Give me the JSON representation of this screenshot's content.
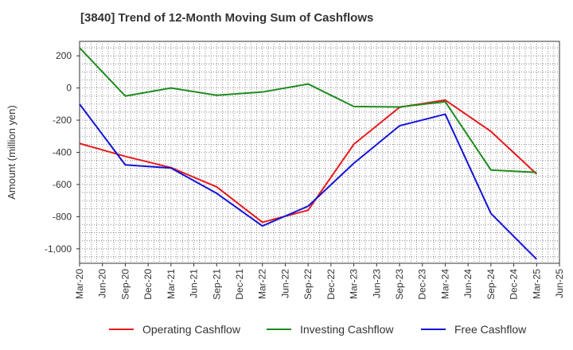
{
  "chart_data": {
    "type": "line",
    "title": "[3840]  Trend of 12-Month Moving Sum of Cashflows",
    "xlabel": "",
    "ylabel": "Amount (million yen)",
    "categories": [
      "Mar-20",
      "Jun-20",
      "Sep-20",
      "Dec-20",
      "Mar-21",
      "Jun-21",
      "Sep-21",
      "Dec-21",
      "Mar-22",
      "Jun-22",
      "Sep-22",
      "Dec-22",
      "Mar-23",
      "Jun-23",
      "Sep-23",
      "Dec-23",
      "Mar-24",
      "Jun-24",
      "Sep-24",
      "Dec-24",
      "Mar-25",
      "Jun-25"
    ],
    "y_ticks": [
      200,
      0,
      -200,
      -400,
      -600,
      -800,
      -1000
    ],
    "y_tick_labels": [
      "200",
      "0",
      "-200",
      "-400",
      "-600",
      "-800",
      "-1,000"
    ],
    "ylim": [
      -1090,
      290
    ],
    "grid": true,
    "legend_position": "bottom",
    "series": [
      {
        "name": "Operating Cashflow",
        "color": "#e8191b",
        "x": [
          "Mar-20",
          "Sep-20",
          "Mar-21",
          "Sep-21",
          "Mar-22",
          "Sep-22",
          "Mar-23",
          "Sep-23",
          "Mar-24",
          "Sep-24",
          "Mar-25"
        ],
        "values": [
          -345,
          -425,
          -495,
          -615,
          -835,
          -760,
          -350,
          -120,
          -75,
          -270,
          -535
        ]
      },
      {
        "name": "Investing Cashflow",
        "color": "#1e8c1e",
        "x": [
          "Mar-20",
          "Sep-20",
          "Mar-21",
          "Sep-21",
          "Mar-22",
          "Sep-22",
          "Mar-23",
          "Sep-23",
          "Mar-24",
          "Sep-24",
          "Mar-25"
        ],
        "values": [
          250,
          -50,
          0,
          -45,
          -25,
          25,
          -115,
          -118,
          -85,
          -510,
          -525
        ]
      },
      {
        "name": "Free Cashflow",
        "color": "#1414d8",
        "x": [
          "Mar-20",
          "Sep-20",
          "Mar-21",
          "Sep-21",
          "Mar-22",
          "Sep-22",
          "Mar-23",
          "Sep-23",
          "Mar-24",
          "Sep-24",
          "Mar-25"
        ],
        "values": [
          -100,
          -478,
          -498,
          -655,
          -858,
          -735,
          -468,
          -235,
          -163,
          -780,
          -1065
        ]
      }
    ]
  }
}
